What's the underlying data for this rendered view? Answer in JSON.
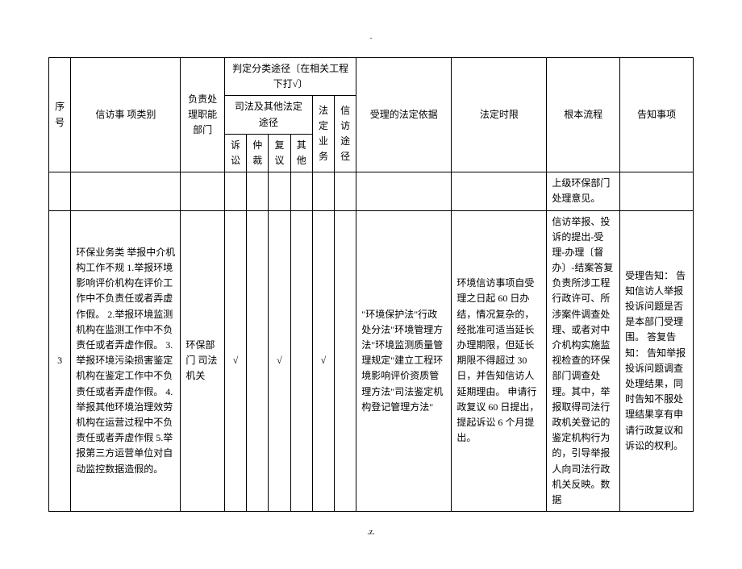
{
  "page_marker_top": ".",
  "page_marker_bottom": ".z.",
  "headers": {
    "seq": "序号",
    "matter": "信访事\n项类别",
    "dept": "负责处理职能部门",
    "judge_group": "判定分类途径〔在相关工程下打√〕",
    "judicial_group": "司法及其他法定途径",
    "litigation": "诉讼",
    "arbitration": "仲裁",
    "reconsider": "复议",
    "other": "其他",
    "legal_business": "法定业务",
    "petition_route": "信访途径",
    "legal_basis": "受理的法定依据",
    "timelimit": "法定时限",
    "process": "根本流程",
    "notice": "告知事项"
  },
  "stub_row": {
    "process": "上级环保部门处理意见。"
  },
  "row3": {
    "seq": "3",
    "matter": "环保业务类\n举报中介机构工作不规\n1.举报环境影响评价机构在评价工作中不负责任或者弄虚作假。\n2.举报环境监测机构在监测工作中不负责任或者弄虚作假。\n3.举报环境污染损害鉴定机构在鉴定工作中不负责任或者弄虚作假。\n4.举报其他环境治理效劳机构在运营过程中不负责任或者弄虚作假\n5.举报第三方运营单位对自动监控数据造假的。",
    "dept": "环保部门\n司法机关",
    "litigation": "√",
    "arbitration": "",
    "reconsider": "√",
    "other": "",
    "legal_business": "√",
    "petition_route": "",
    "legal_basis": "\"环境保护法\"行政处分法\"环境管理方法\"环境监测质量管理规定\"建立工程环境影响评价资质管理方法\"司法鉴定机构登记管理方法\"",
    "timelimit": "环境信访事项自受理之日起 60 日办结，情况复杂的，经批准可适当延长办理期限，但延长期限不得超过 30 日，并告知信访人延期理由。\n申请行政复议 60 日提出，提起诉讼 6 个月提出。",
    "process": "信访举报、投诉的提出-受理-办理〔督办〕-结案答复\n负责所涉工程行政许可、所涉案件调查处理、或者对中介机构实施监视检查的环保部门调查处理。其中，举报取得司法行政机关登记的鉴定机构行为的，引导举报人向司法行政机关反映。数据",
    "notice": "受理告知：\n告知信访人举报投诉问题是否是本部门受理围。\n答复告知：\n告知举报投诉问题调查处理结果，同时告知不服处理结果享有申请行政复议和诉讼的权利。"
  }
}
